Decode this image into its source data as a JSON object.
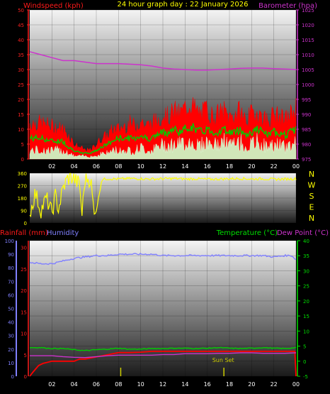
{
  "title": "24 hour graph day : 22 January 2026",
  "colors": {
    "wind": "#ff0000",
    "gust": "#ff0000",
    "avg": "#00cc00",
    "lull": "#ccffcc",
    "baro": "#cc33cc",
    "dir": "#ffff00",
    "rain": "#ff0000",
    "hum": "#8080ff",
    "temp": "#00cc00",
    "dew": "#cc33cc",
    "sun": "#cccc00"
  },
  "chart_data": [
    {
      "type": "line",
      "left_label": "Windspeed (kph)",
      "right_label": "Barometer (hpa)",
      "x_ticks": [
        "02",
        "04",
        "06",
        "08",
        "10",
        "12",
        "14",
        "16",
        "18",
        "20",
        "22",
        "00"
      ],
      "y_left_ticks": [
        "0",
        "5",
        "10",
        "15",
        "20",
        "25",
        "30",
        "35",
        "40",
        "45",
        "50"
      ],
      "y_right_ticks": [
        "975",
        "980",
        "985",
        "990",
        "995",
        "1000",
        "1005",
        "1010",
        "1015",
        "1020",
        "1025"
      ],
      "ylim_left": [
        0,
        50
      ],
      "ylim_right": [
        975,
        1025
      ],
      "x_range_hours": [
        0,
        24
      ],
      "series": [
        {
          "name": "gust",
          "axis": "left",
          "x": [
            0,
            1,
            2,
            3,
            3.5,
            4,
            4.5,
            5,
            5.5,
            6,
            6.5,
            7,
            7.5,
            8,
            8.5,
            9,
            9.5,
            10,
            10.5,
            11,
            11.5,
            12,
            12.5,
            13,
            13.5,
            14,
            14.5,
            15,
            15.5,
            16,
            16.5,
            17,
            17.5,
            18,
            18.5,
            19,
            19.5,
            20,
            20.5,
            21,
            21.5,
            22,
            22.5,
            23,
            23.5,
            24
          ],
          "values": [
            12,
            12,
            11,
            10,
            8,
            5,
            4,
            3,
            3,
            5,
            7,
            8,
            10,
            10,
            11,
            12,
            11,
            13,
            11,
            12,
            13,
            15,
            14,
            16,
            15,
            17,
            19,
            16,
            15,
            17,
            14,
            15,
            16,
            14,
            15,
            16,
            13,
            15,
            16,
            14,
            13,
            15,
            14,
            13,
            15,
            17
          ]
        },
        {
          "name": "average",
          "axis": "left",
          "x": [
            0,
            1,
            2,
            3,
            3.5,
            4,
            4.5,
            5,
            5.5,
            6,
            6.5,
            7,
            7.5,
            8,
            8.5,
            9,
            9.5,
            10,
            10.5,
            11,
            11.5,
            12,
            12.5,
            13,
            13.5,
            14,
            14.5,
            15,
            15.5,
            16,
            16.5,
            17,
            17.5,
            18,
            18.5,
            19,
            19.5,
            20,
            20.5,
            21,
            21.5,
            22,
            22.5,
            23,
            23.5,
            24
          ],
          "values": [
            7,
            7,
            6,
            6,
            4,
            3,
            2,
            2,
            2,
            3,
            4,
            5,
            6,
            7,
            7,
            7,
            7,
            8,
            7,
            7,
            8,
            9,
            9,
            10,
            9,
            10,
            11,
            10,
            9,
            10,
            9,
            9,
            10,
            9,
            9,
            10,
            8,
            9,
            10,
            9,
            8,
            9,
            9,
            8,
            9,
            10
          ]
        },
        {
          "name": "lull",
          "axis": "left",
          "x": [
            0,
            1,
            2,
            3,
            3.5,
            4,
            4.5,
            5,
            5.5,
            6,
            6.5,
            7,
            7.5,
            8,
            8.5,
            9,
            9.5,
            10,
            10.5,
            11,
            11.5,
            12,
            12.5,
            13,
            13.5,
            14,
            14.5,
            15,
            15.5,
            16,
            16.5,
            17,
            17.5,
            18,
            18.5,
            19,
            19.5,
            20,
            20.5,
            21,
            21.5,
            22,
            22.5,
            23,
            23.5,
            24
          ],
          "values": [
            3,
            3,
            3,
            3,
            2,
            1,
            1,
            1,
            1,
            1,
            2,
            2,
            3,
            3,
            3,
            3,
            3,
            4,
            3,
            3,
            4,
            5,
            5,
            5,
            5,
            6,
            6,
            5,
            5,
            6,
            5,
            5,
            6,
            5,
            5,
            6,
            4,
            5,
            6,
            5,
            4,
            5,
            5,
            4,
            5,
            6
          ]
        },
        {
          "name": "barometer",
          "axis": "right",
          "x": [
            0,
            1,
            2,
            3,
            4,
            5,
            6,
            7,
            8,
            9,
            10,
            11,
            12,
            13,
            14,
            15,
            16,
            17,
            18,
            19,
            20,
            21,
            22,
            23,
            24
          ],
          "values": [
            1011,
            1010,
            1009,
            1008,
            1008,
            1007.5,
            1007,
            1007,
            1007,
            1006.8,
            1006.6,
            1006.2,
            1005.5,
            1005.2,
            1005,
            1004.8,
            1004.8,
            1005,
            1005.2,
            1005.4,
            1005.5,
            1005.5,
            1005.3,
            1005.2,
            1005
          ]
        }
      ]
    },
    {
      "type": "line",
      "right_labels": [
        "N",
        "W",
        "S",
        "E",
        "N"
      ],
      "y_left_ticks": [
        "360",
        "270",
        "180",
        "90",
        "0"
      ],
      "ylim": [
        0,
        360
      ],
      "x_range_hours": [
        0,
        24
      ],
      "series": [
        {
          "name": "wind direction",
          "x": [
            0,
            0.5,
            1,
            1.5,
            2,
            2.3,
            2.6,
            3,
            3.4,
            3.8,
            4,
            4.2,
            4.5,
            4.7,
            5,
            5.3,
            5.5,
            5.8,
            6,
            6.5,
            7,
            8,
            9,
            10,
            11,
            12,
            13,
            14,
            15,
            16,
            17,
            18,
            19,
            20,
            21,
            22,
            23,
            24
          ],
          "values": [
            60,
            220,
            90,
            180,
            70,
            200,
            100,
            250,
            320,
            330,
            320,
            300,
            280,
            60,
            330,
            320,
            310,
            60,
            90,
            315,
            320,
            318,
            322,
            320,
            318,
            320,
            322,
            318,
            320,
            316,
            318,
            320,
            322,
            318,
            320,
            316,
            318,
            320
          ]
        }
      ]
    },
    {
      "type": "line",
      "left_label_1": "Rainfall (mm)",
      "left_label_2": "Humidity",
      "right_label_1": "Temperature (°C)",
      "right_label_2": "Dew Point (°C)",
      "annotation": "Sun Set",
      "x_ticks": [
        "02",
        "04",
        "06",
        "08",
        "10",
        "12",
        "14",
        "16",
        "18",
        "20",
        "22",
        "00"
      ],
      "y_humidity_ticks": [
        "0",
        "10",
        "20",
        "30",
        "40",
        "50",
        "60",
        "70",
        "80",
        "90",
        "100"
      ],
      "y_rain_ticks": [
        "0",
        "5",
        "10",
        "15",
        "20",
        "25",
        "30"
      ],
      "y_temp_ticks": [
        "-5",
        "0",
        "5",
        "10",
        "15",
        "20",
        "25",
        "30",
        "35",
        "40"
      ],
      "ylim_humidity": [
        0,
        100
      ],
      "ylim_rain": [
        0,
        30
      ],
      "ylim_temp": [
        -5,
        40
      ],
      "x_range_hours": [
        0,
        24
      ],
      "series": [
        {
          "name": "humidity",
          "axis": "humidity",
          "x": [
            0,
            1,
            2,
            3,
            4,
            5,
            6,
            7,
            8,
            9,
            10,
            11,
            12,
            13,
            14,
            15,
            16,
            17,
            18,
            19,
            20,
            21,
            22,
            23,
            23.6,
            24
          ],
          "values": [
            84,
            83,
            83,
            85,
            87,
            88,
            89,
            89,
            90,
            90,
            90,
            90,
            89,
            89,
            89,
            89,
            89,
            89,
            89,
            89,
            89,
            89,
            88,
            89,
            89,
            86
          ]
        },
        {
          "name": "rainfall",
          "axis": "rain",
          "x": [
            0,
            0.3,
            0.8,
            1.2,
            2,
            3,
            4,
            4.5,
            5,
            6,
            7,
            8,
            9,
            10,
            11,
            12,
            16,
            20,
            23.9,
            24
          ],
          "values": [
            0,
            1,
            2.5,
            3,
            3.5,
            3.5,
            3.5,
            4,
            4,
            4.5,
            5,
            5.5,
            5.5,
            5.6,
            5.8,
            5.8,
            5.8,
            5.8,
            5.8,
            0
          ]
        },
        {
          "name": "temperature",
          "axis": "temp",
          "x": [
            0,
            1,
            2,
            3,
            4,
            5,
            6,
            7,
            8,
            9,
            10,
            11,
            12,
            13,
            14,
            15,
            16,
            17,
            18,
            19,
            20,
            21,
            22,
            23,
            24
          ],
          "values": [
            4.5,
            4.5,
            4.2,
            4.2,
            3.8,
            3.5,
            3.8,
            4,
            4.3,
            4,
            4,
            4.2,
            4.2,
            4.3,
            4.3,
            4.2,
            4.3,
            4.5,
            4.3,
            4.2,
            4.3,
            4.5,
            4.3,
            4.2,
            4.5
          ]
        },
        {
          "name": "dew point",
          "axis": "temp",
          "x": [
            0,
            1,
            2,
            3,
            4,
            5,
            6,
            7,
            8,
            9,
            10,
            11,
            12,
            13,
            14,
            15,
            16,
            17,
            18,
            19,
            20,
            21,
            22,
            23,
            24
          ],
          "values": [
            1.8,
            1.8,
            1.8,
            1.5,
            1.3,
            1.2,
            1.5,
            1.8,
            2,
            2,
            2,
            2,
            2.2,
            2.2,
            2.5,
            2.5,
            2.5,
            2.6,
            2.6,
            2.8,
            2.8,
            2.6,
            2.6,
            2.6,
            2.8
          ]
        }
      ],
      "markers": [
        {
          "name": "sunset marker",
          "x": 17.5,
          "value": 2
        },
        {
          "name": "small bar",
          "x": 8.2,
          "value": 2
        }
      ]
    }
  ]
}
